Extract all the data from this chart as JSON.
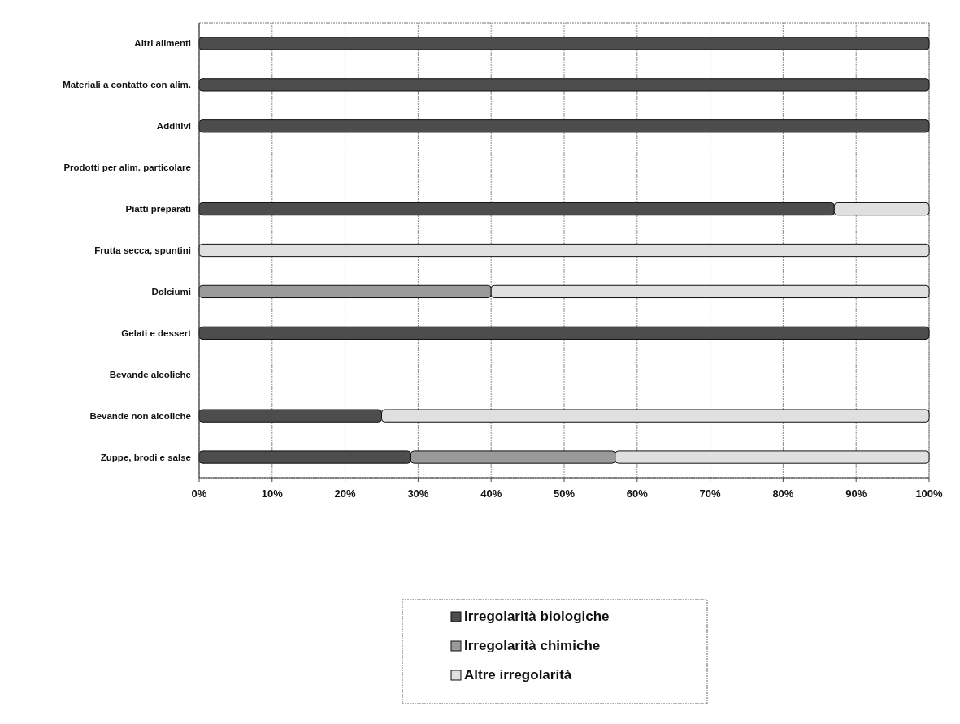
{
  "chart_data": {
    "type": "bar",
    "orientation": "horizontal",
    "stacked": true,
    "categories": [
      "Altri alimenti",
      "Materiali a contatto con alim.",
      "Additivi",
      "Prodotti per alim. particolare",
      "Piatti preparati",
      "Frutta secca, spuntini",
      "Dolciumi",
      "Gelati e dessert",
      "Bevande alcoliche",
      "Bevande non alcoliche",
      "Zuppe, brodi e salse"
    ],
    "series": [
      {
        "name": "Irregolarità biologiche",
        "color": "#4d4d4d",
        "values": [
          100,
          100,
          100,
          0,
          87,
          0,
          0,
          100,
          0,
          25,
          29
        ]
      },
      {
        "name": "Irregolarità chimiche",
        "color": "#9a9a9a",
        "values": [
          0,
          0,
          0,
          0,
          0,
          0,
          40,
          0,
          0,
          0,
          28
        ]
      },
      {
        "name": "Altre irregolarità",
        "color": "#e0e0e0",
        "values": [
          0,
          0,
          0,
          0,
          13,
          100,
          60,
          0,
          0,
          75,
          43
        ]
      }
    ],
    "xlim": [
      0,
      100
    ],
    "xticks": [
      {
        "value": 0,
        "label": "0%"
      },
      {
        "value": 10,
        "label": "10%"
      },
      {
        "value": 20,
        "label": "20%"
      },
      {
        "value": 30,
        "label": "30%"
      },
      {
        "value": 40,
        "label": "40%"
      },
      {
        "value": 50,
        "label": "50%"
      },
      {
        "value": 60,
        "label": "60%"
      },
      {
        "value": 70,
        "label": "70%"
      },
      {
        "value": 80,
        "label": "80%"
      },
      {
        "value": 90,
        "label": "90%"
      },
      {
        "value": 100,
        "label": "100%"
      }
    ],
    "grid": "x",
    "legend": "bottom"
  }
}
